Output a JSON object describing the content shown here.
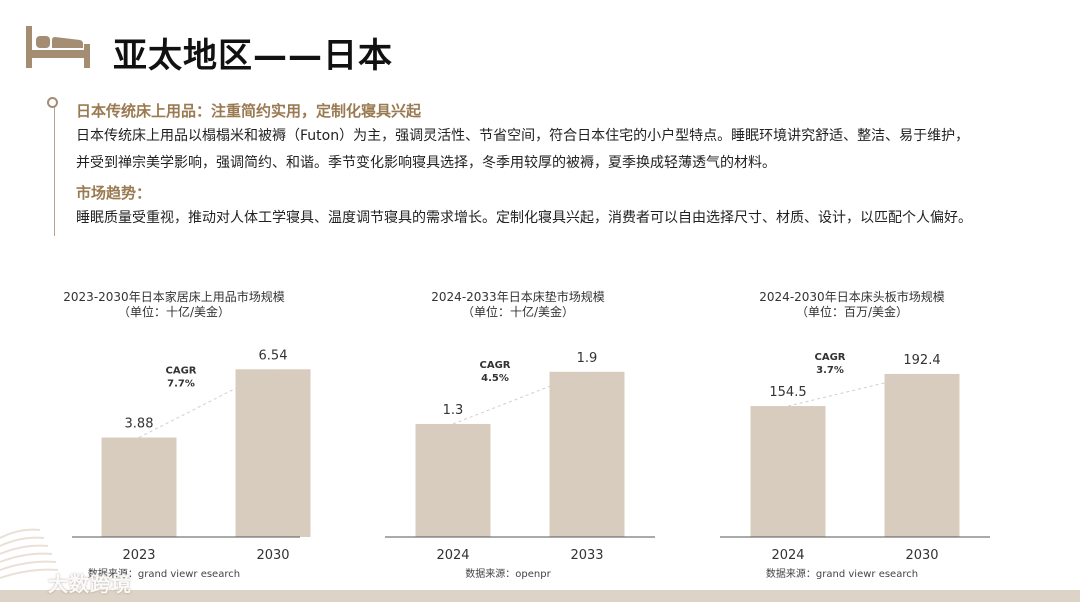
{
  "page": {
    "title": "亚太地区——日本"
  },
  "icons": {
    "title": "bed-icon",
    "logo": "logo-icon"
  },
  "colors": {
    "bar": "#d7ccbd",
    "accent": "#9a7a52",
    "band": "#ddd3c6"
  },
  "intro": {
    "heading": "日本传统床上用品：注重简约实用，定制化寝具兴起",
    "paragraph1_line1": "日本传统床上用品以榻榻米和被褥（Futon）为主，强调灵活性、节省空间，符合日本住宅的小户型特点。睡眠环境讲究舒适、整洁、易于维护，",
    "paragraph1_line2": "并受到禅宗美学影响，强调简约、和谐。季节变化影响寝具选择，冬季用较厚的被褥，夏季换成轻薄透气的材料。",
    "trend_heading": "市场趋势：",
    "paragraph2": "睡眠质量受重视，推动对人体工学寝具、温度调节寝具的需求增长。定制化寝具兴起，消费者可以自由选择尺寸、材质、设计，以匹配个人偏好。"
  },
  "chart_data": [
    {
      "type": "bar",
      "title": "2023-2030年日本家居床上用品市场规模",
      "subtitle": "（单位：十亿/美金）",
      "categories": [
        "2023",
        "2030"
      ],
      "values": [
        3.88,
        6.54
      ],
      "value_labels": [
        "3.88",
        "6.54"
      ],
      "cagr_label": "CAGR",
      "cagr_value": "7.7%",
      "source": "数据来源：grand viewr esearch",
      "ylim": [
        0,
        7.8
      ]
    },
    {
      "type": "bar",
      "title": "2024-2033年日本床垫市场规模",
      "subtitle": "（单位：十亿/美金）",
      "categories": [
        "2024",
        "2033"
      ],
      "values": [
        1.3,
        1.9
      ],
      "value_labels": [
        "1.3",
        "1.9"
      ],
      "cagr_label": "CAGR",
      "cagr_value": "4.5%",
      "source": "数据来源：openpr",
      "ylim": [
        0,
        2.3
      ]
    },
    {
      "type": "bar",
      "title": "2024-2030年日本床头板市场规模",
      "subtitle": "（单位：百万/美金）",
      "categories": [
        "2024",
        "2030"
      ],
      "values": [
        154.5,
        192.4
      ],
      "value_labels": [
        "154.5",
        "192.4"
      ],
      "cagr_label": "CAGR",
      "cagr_value": "3.7%",
      "source": "数据来源：grand viewr esearch",
      "ylim": [
        0,
        236
      ]
    }
  ],
  "watermark": {
    "text": "大数跨境"
  }
}
